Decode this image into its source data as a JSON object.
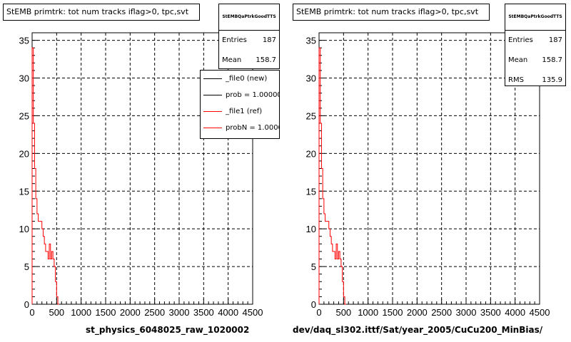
{
  "chart_data": [
    {
      "type": "histogram",
      "title": "StEMB primtrk: tot num tracks iflag>0, tpc,svt",
      "xlabel": "st_physics_6048025_raw_1020002",
      "xlim": [
        0,
        4500
      ],
      "ylim": [
        0,
        36
      ],
      "x_ticks": [
        0,
        500,
        1000,
        1500,
        2000,
        2500,
        3000,
        3500,
        4000,
        4500
      ],
      "y_ticks": [
        0,
        5,
        10,
        15,
        20,
        25,
        30,
        35
      ],
      "grid": true,
      "bin_width": 25,
      "series": [
        {
          "name": "_file1 (ref)",
          "color": "#ff0000",
          "bins": [
            {
              "x": 0,
              "y": 34
            },
            {
              "x": 25,
              "y": 24
            },
            {
              "x": 50,
              "y": 18
            },
            {
              "x": 75,
              "y": 14
            },
            {
              "x": 100,
              "y": 12
            },
            {
              "x": 125,
              "y": 11
            },
            {
              "x": 150,
              "y": 11
            },
            {
              "x": 175,
              "y": 11
            },
            {
              "x": 200,
              "y": 10
            },
            {
              "x": 225,
              "y": 9
            },
            {
              "x": 250,
              "y": 8
            },
            {
              "x": 275,
              "y": 7
            },
            {
              "x": 300,
              "y": 7
            },
            {
              "x": 325,
              "y": 6
            },
            {
              "x": 350,
              "y": 8
            },
            {
              "x": 375,
              "y": 6
            },
            {
              "x": 400,
              "y": 7
            },
            {
              "x": 425,
              "y": 6
            },
            {
              "x": 450,
              "y": 5
            },
            {
              "x": 475,
              "y": 3
            },
            {
              "x": 500,
              "y": 1
            },
            {
              "x": 525,
              "y": 0
            }
          ]
        }
      ],
      "stats": {
        "name": "StEMBQaPtrkGoodTTS",
        "rows": [
          {
            "label": "Entries",
            "value": "187"
          },
          {
            "label": "Mean",
            "value": "158.7"
          }
        ]
      },
      "legend": {
        "position": "top-right",
        "entries": [
          {
            "label": "_file0 (new)",
            "color": "#000000"
          },
          {
            "label": "prob = 1.000000",
            "color": "#000000"
          },
          {
            "label": "_file1 (ref)",
            "color": "#ff0000"
          },
          {
            "label": "probN = 1.000000",
            "color": "#ff0000"
          }
        ]
      }
    },
    {
      "type": "histogram",
      "title": "StEMB primtrk: tot num tracks iflag>0, tpc,svt",
      "xlabel": "dev/daq_sl302.ittf/Sat/year_2005/CuCu200_MinBias/",
      "xlim": [
        0,
        4500
      ],
      "ylim": [
        0,
        36
      ],
      "x_ticks": [
        0,
        500,
        1000,
        1500,
        2000,
        2500,
        3000,
        3500,
        4000,
        4500
      ],
      "y_ticks": [
        0,
        5,
        10,
        15,
        20,
        25,
        30,
        35
      ],
      "grid": true,
      "bin_width": 25,
      "series": [
        {
          "color": "#ff0000",
          "bins": [
            {
              "x": 0,
              "y": 34
            },
            {
              "x": 25,
              "y": 24
            },
            {
              "x": 50,
              "y": 18
            },
            {
              "x": 75,
              "y": 14
            },
            {
              "x": 100,
              "y": 12
            },
            {
              "x": 125,
              "y": 11
            },
            {
              "x": 150,
              "y": 11
            },
            {
              "x": 175,
              "y": 11
            },
            {
              "x": 200,
              "y": 10
            },
            {
              "x": 225,
              "y": 9
            },
            {
              "x": 250,
              "y": 8
            },
            {
              "x": 275,
              "y": 7
            },
            {
              "x": 300,
              "y": 7
            },
            {
              "x": 325,
              "y": 6
            },
            {
              "x": 350,
              "y": 8
            },
            {
              "x": 375,
              "y": 6
            },
            {
              "x": 400,
              "y": 7
            },
            {
              "x": 425,
              "y": 6
            },
            {
              "x": 450,
              "y": 5
            },
            {
              "x": 475,
              "y": 3
            },
            {
              "x": 500,
              "y": 1
            },
            {
              "x": 525,
              "y": 0
            }
          ]
        }
      ],
      "stats": {
        "name": "StEMBQaPtrkGoodTTS",
        "rows": [
          {
            "label": "Entries",
            "value": "187"
          },
          {
            "label": "Mean",
            "value": "158.7"
          },
          {
            "label": "RMS",
            "value": "135.9"
          }
        ]
      }
    }
  ]
}
